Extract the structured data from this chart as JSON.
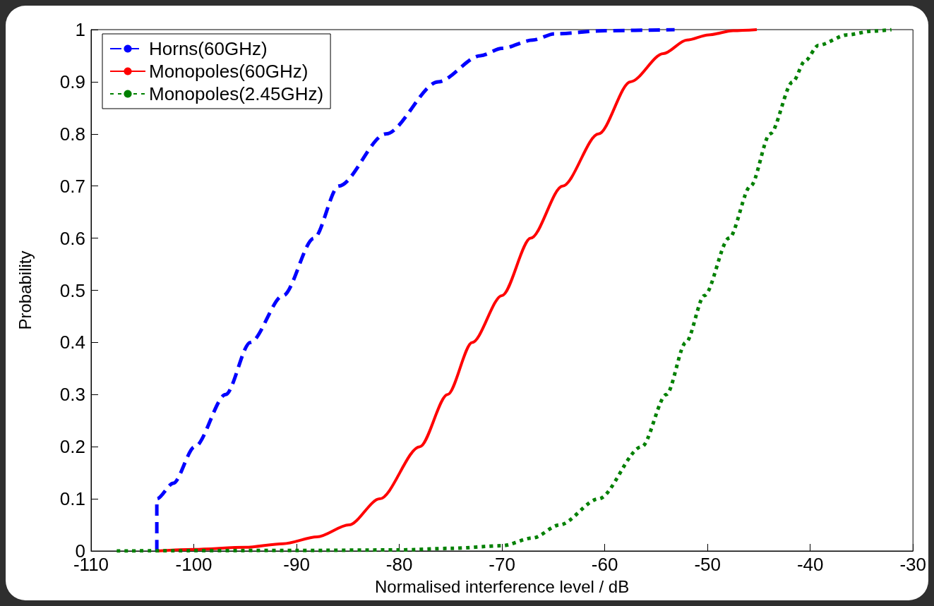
{
  "chart_data": {
    "type": "line",
    "xlabel": "Normalised interference level / dB",
    "ylabel": "Probability",
    "xlim": [
      -110,
      -30
    ],
    "xticks": [
      -110,
      -100,
      -90,
      -80,
      -70,
      -60,
      -50,
      -40,
      -30
    ],
    "ylim": [
      0,
      1
    ],
    "yticks": [
      0,
      0.1,
      0.2,
      0.3,
      0.4,
      0.5,
      0.6,
      0.7,
      0.8,
      0.9,
      1
    ],
    "grid": false,
    "legend": "top left",
    "marker": "none",
    "series": [
      {
        "name": "Horns(60GHz)",
        "color": "#0000ff",
        "line_style": "dashed",
        "x": [
          -103.6,
          -103.6,
          -102,
          -99.9,
          -96.9,
          -94.5,
          -91.3,
          -88.3,
          -85.9,
          -81.3,
          -76.2,
          -72.1,
          -70,
          -67,
          -64.9,
          -60,
          -53.2
        ],
        "values": [
          0,
          0.1,
          0.13,
          0.2,
          0.3,
          0.4,
          0.49,
          0.6,
          0.7,
          0.8,
          0.9,
          0.95,
          0.964,
          0.98,
          0.992,
          0.998,
          1
        ]
      },
      {
        "name": "Monopoles(60GHz)",
        "color": "#ff0000",
        "line_style": "solid",
        "x": [
          -103.6,
          -100,
          -95,
          -91.3,
          -88,
          -84.9,
          -81.9,
          -78,
          -75.3,
          -72.9,
          -70,
          -67.2,
          -64.1,
          -60.6,
          -57.5,
          -54.3,
          -52,
          -49.9,
          -47.5,
          -45.2
        ],
        "values": [
          0,
          0.003,
          0.007,
          0.014,
          0.027,
          0.05,
          0.1,
          0.2,
          0.3,
          0.4,
          0.49,
          0.6,
          0.7,
          0.8,
          0.9,
          0.954,
          0.98,
          0.99,
          0.998,
          1
        ]
      },
      {
        "name": "Monopoles(2.45GHz)",
        "color": "#008000",
        "line_style": "dotted",
        "x": [
          -107.5,
          -90,
          -80,
          -75,
          -70,
          -67,
          -64.4,
          -60.6,
          -56.4,
          -54,
          -52.1,
          -50.3,
          -47.9,
          -45.8,
          -43.9,
          -41.7,
          -40.5,
          -39.2,
          -36.4,
          -34,
          -32.1
        ],
        "values": [
          0,
          0.001,
          0.002,
          0.005,
          0.01,
          0.025,
          0.05,
          0.1,
          0.2,
          0.3,
          0.4,
          0.49,
          0.6,
          0.7,
          0.8,
          0.9,
          0.94,
          0.97,
          0.99,
          0.997,
          1
        ]
      }
    ]
  }
}
